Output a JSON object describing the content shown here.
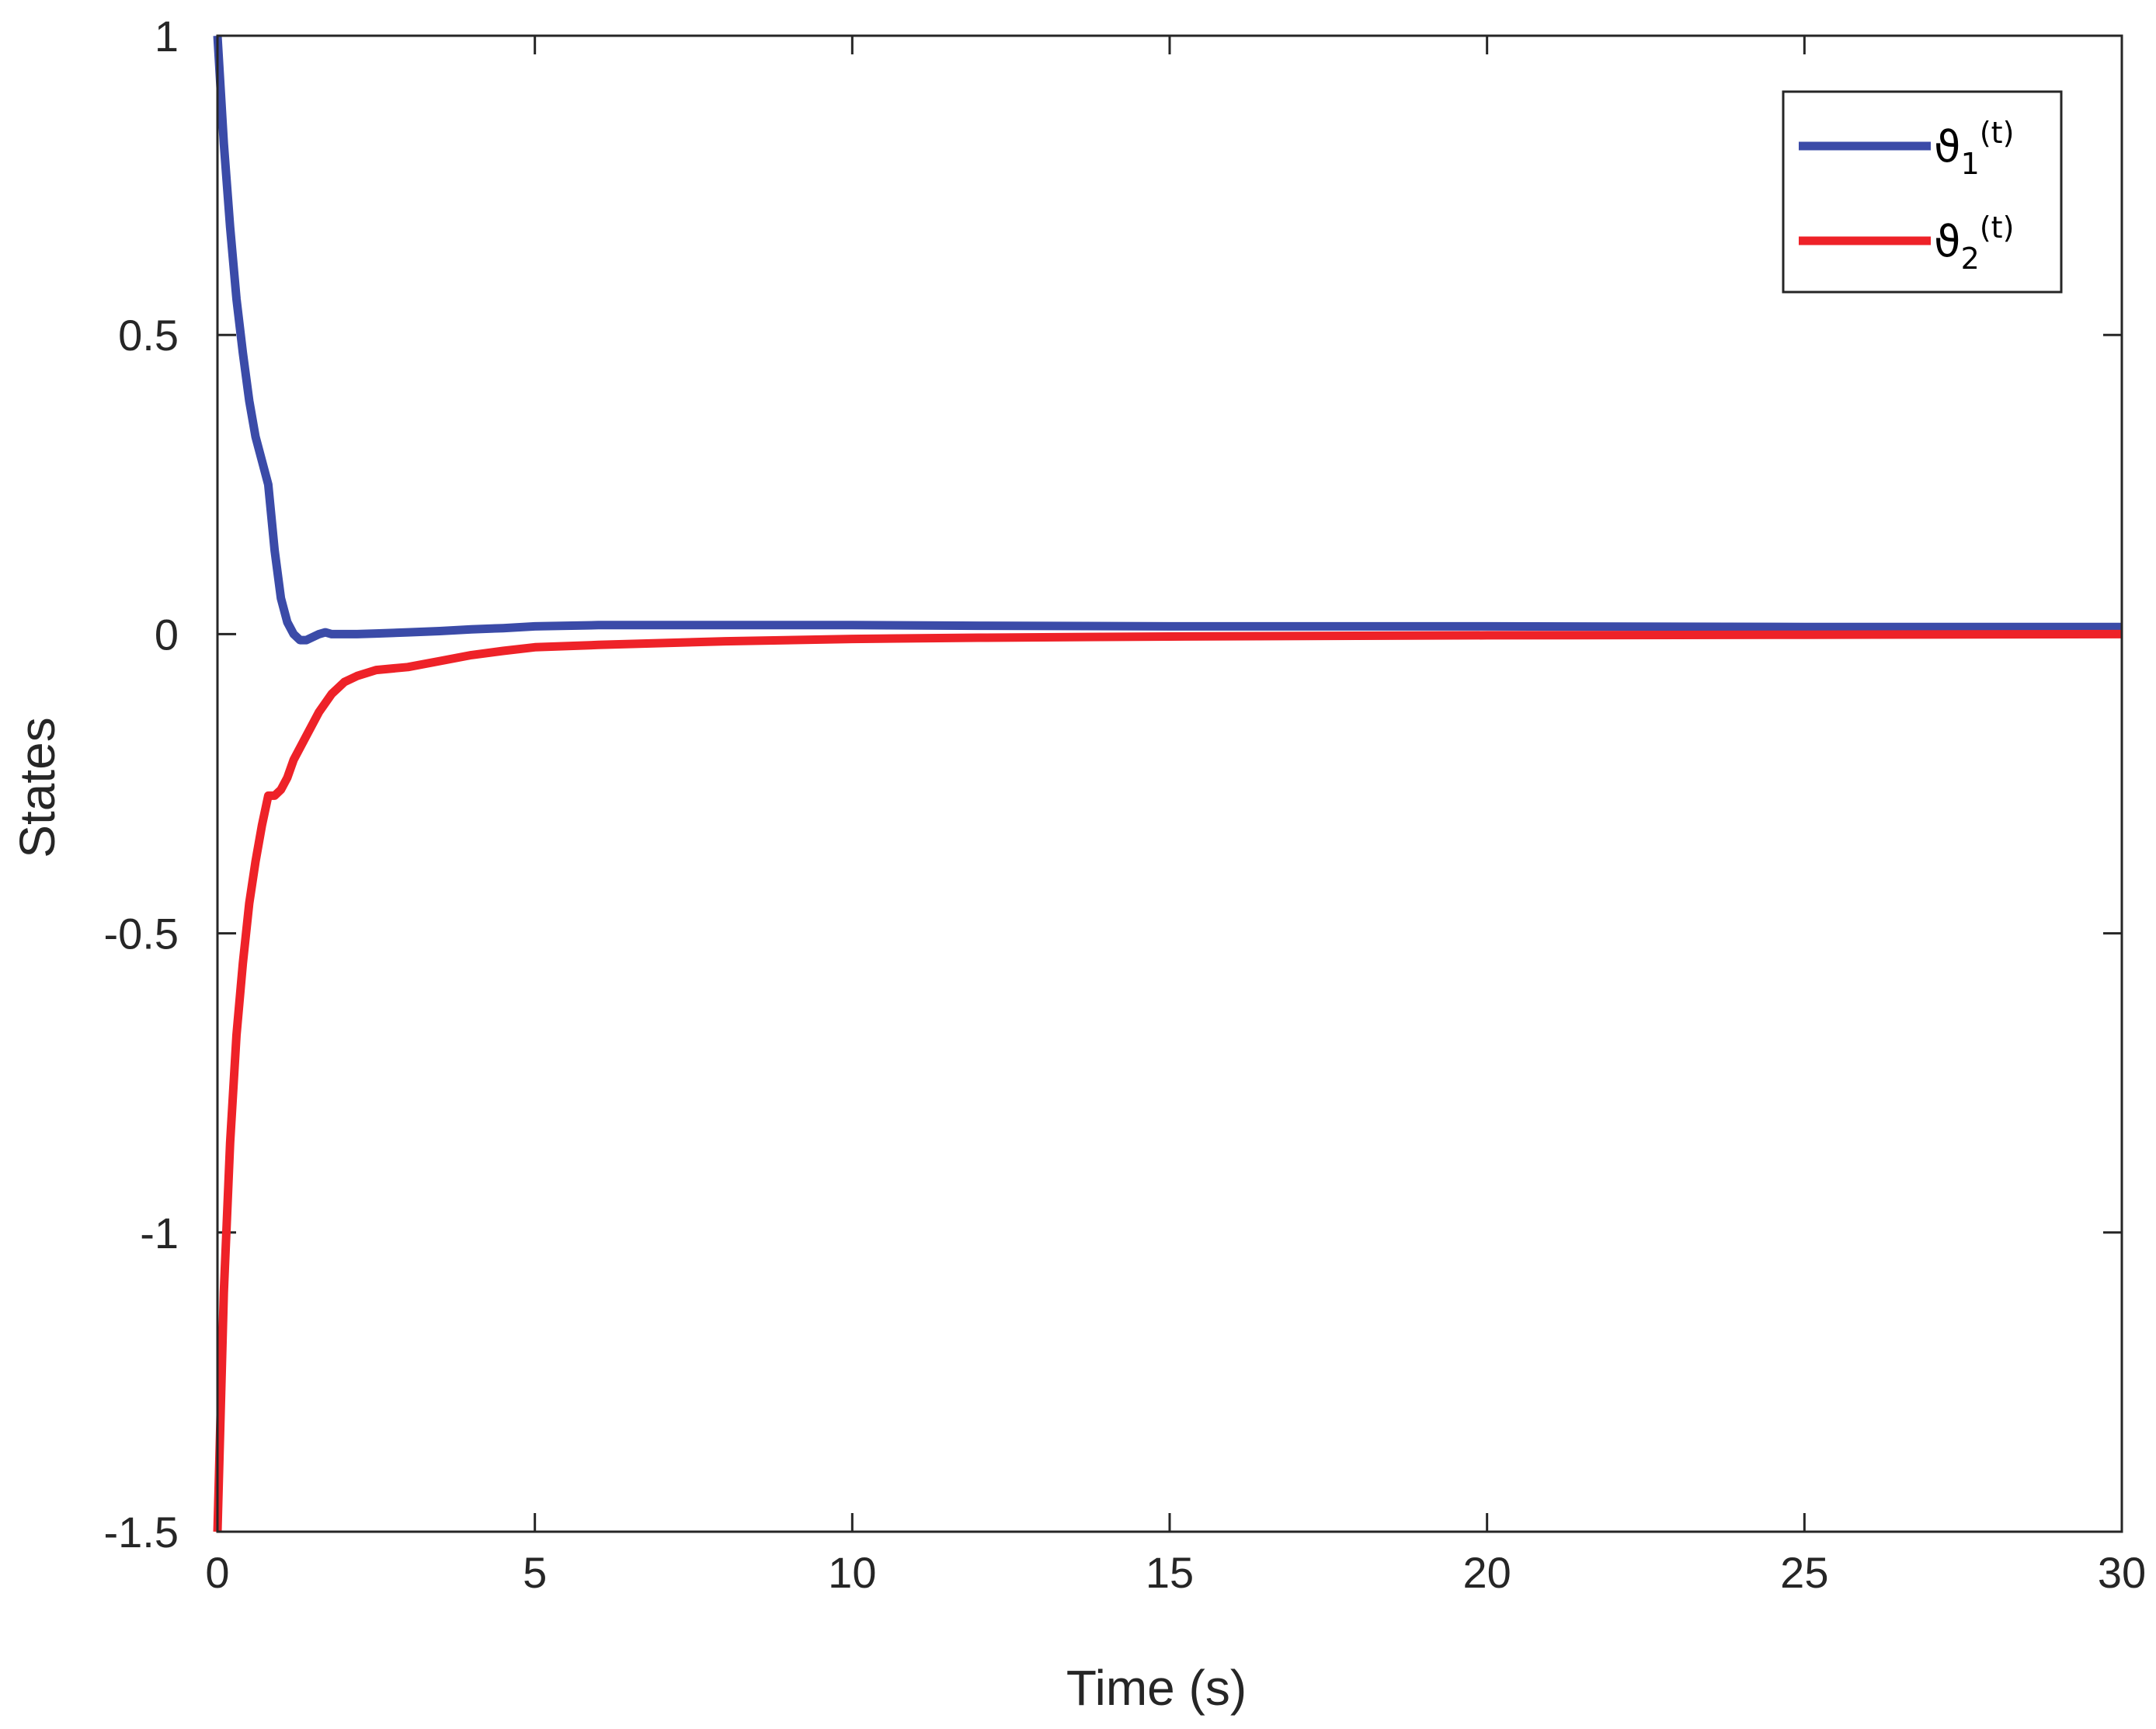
{
  "chart_data": {
    "type": "line",
    "title": "",
    "xlabel": "Time (s)",
    "ylabel": "States",
    "xlim": [
      0,
      30
    ],
    "ylim": [
      -1.5,
      1
    ],
    "xticks": [
      0,
      5,
      10,
      15,
      20,
      25,
      30
    ],
    "yticks": [
      -1.5,
      -1,
      -0.5,
      0,
      0.5,
      1
    ],
    "xtick_labels": [
      "0",
      "5",
      "10",
      "15",
      "20",
      "25",
      "30"
    ],
    "ytick_labels": [
      "-1.5",
      "-1",
      "-0.5",
      "0",
      "0.5",
      "1"
    ],
    "grid": false,
    "legend_position": "top-right",
    "series": [
      {
        "name": "ϑ1(t)",
        "symbol": "ϑ",
        "subscript": "1",
        "suffix": "(t)",
        "color": "#3b4ba8",
        "x": [
          0,
          0.1,
          0.2,
          0.3,
          0.4,
          0.5,
          0.6,
          0.7,
          0.8,
          0.9,
          1.0,
          1.1,
          1.2,
          1.3,
          1.4,
          1.5,
          1.6,
          1.7,
          1.8,
          2.0,
          2.2,
          2.5,
          3,
          3.5,
          4,
          4.5,
          5,
          6,
          8,
          10,
          12,
          15,
          20,
          25,
          30
        ],
        "values": [
          1.0,
          0.82,
          0.68,
          0.56,
          0.47,
          0.39,
          0.33,
          0.29,
          0.25,
          0.14,
          0.06,
          0.02,
          0.0,
          -0.01,
          -0.01,
          -0.005,
          0.0,
          0.003,
          0.0,
          0.0,
          0.0,
          0.001,
          0.003,
          0.005,
          0.008,
          0.01,
          0.013,
          0.015,
          0.015,
          0.015,
          0.014,
          0.013,
          0.013,
          0.012,
          0.012
        ]
      },
      {
        "name": "ϑ2(t)",
        "symbol": "ϑ",
        "subscript": "2",
        "suffix": "(t)",
        "color": "#ee2228",
        "x": [
          0,
          0.1,
          0.2,
          0.3,
          0.4,
          0.5,
          0.6,
          0.7,
          0.8,
          0.9,
          1.0,
          1.1,
          1.2,
          1.4,
          1.6,
          1.8,
          2.0,
          2.2,
          2.5,
          3,
          3.5,
          4,
          4.5,
          5,
          6,
          8,
          10,
          12,
          15,
          20,
          25,
          30
        ],
        "values": [
          -1.5,
          -1.1,
          -0.85,
          -0.67,
          -0.55,
          -0.45,
          -0.38,
          -0.32,
          -0.27,
          -0.27,
          -0.26,
          -0.24,
          -0.21,
          -0.17,
          -0.13,
          -0.1,
          -0.08,
          -0.07,
          -0.06,
          -0.055,
          -0.045,
          -0.035,
          -0.028,
          -0.022,
          -0.018,
          -0.012,
          -0.008,
          -0.006,
          -0.004,
          -0.002,
          -0.001,
          0.0
        ]
      }
    ]
  }
}
